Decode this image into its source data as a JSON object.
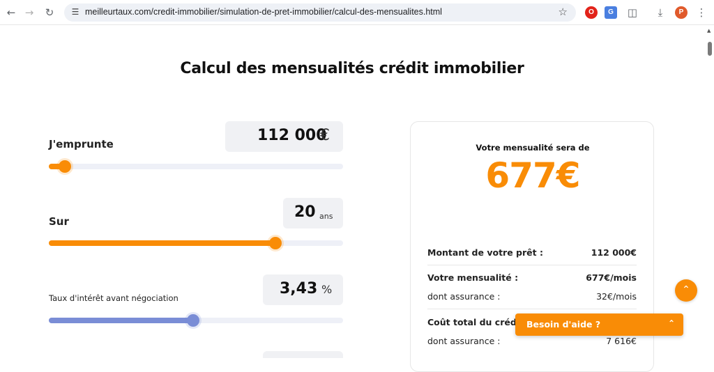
{
  "browser": {
    "url": "meilleurtaux.com/credit-immobilier/simulation-de-pret-immobilier/calcul-des-mensualites.html",
    "profile_initial": "P"
  },
  "page": {
    "title": "Calcul des mensualités crédit immobilier"
  },
  "sliders": [
    {
      "label": "J'emprunte",
      "value": "112 000",
      "unit": "€",
      "fill_fraction": 0.055,
      "color": "#f98c06"
    },
    {
      "label": "Sur",
      "value": "20",
      "unit": "ans",
      "fill_fraction": 0.77,
      "color": "#f98c06"
    },
    {
      "label": "Taux d'intérêt avant négociation",
      "value": "3,43",
      "unit": "%",
      "fill_fraction": 0.49,
      "color": "#7a8dd6"
    }
  ],
  "result": {
    "heading": "Votre mensualité sera de",
    "amount": "677€",
    "rows": [
      {
        "label": "Montant de votre prêt :",
        "value": "112 000€"
      },
      {
        "label": "Votre mensualité :",
        "value": "677€/mois"
      },
      {
        "label": "dont assurance :",
        "value": "32€/mois"
      },
      {
        "label": "Coût total du crédit",
        "value": ""
      },
      {
        "label": "dont assurance :",
        "value": "7 616€"
      }
    ]
  },
  "help": {
    "label": "Besoin d'aide ?"
  },
  "colors": {
    "accent": "#f98c06",
    "rate_slider": "#7a8dd6"
  }
}
